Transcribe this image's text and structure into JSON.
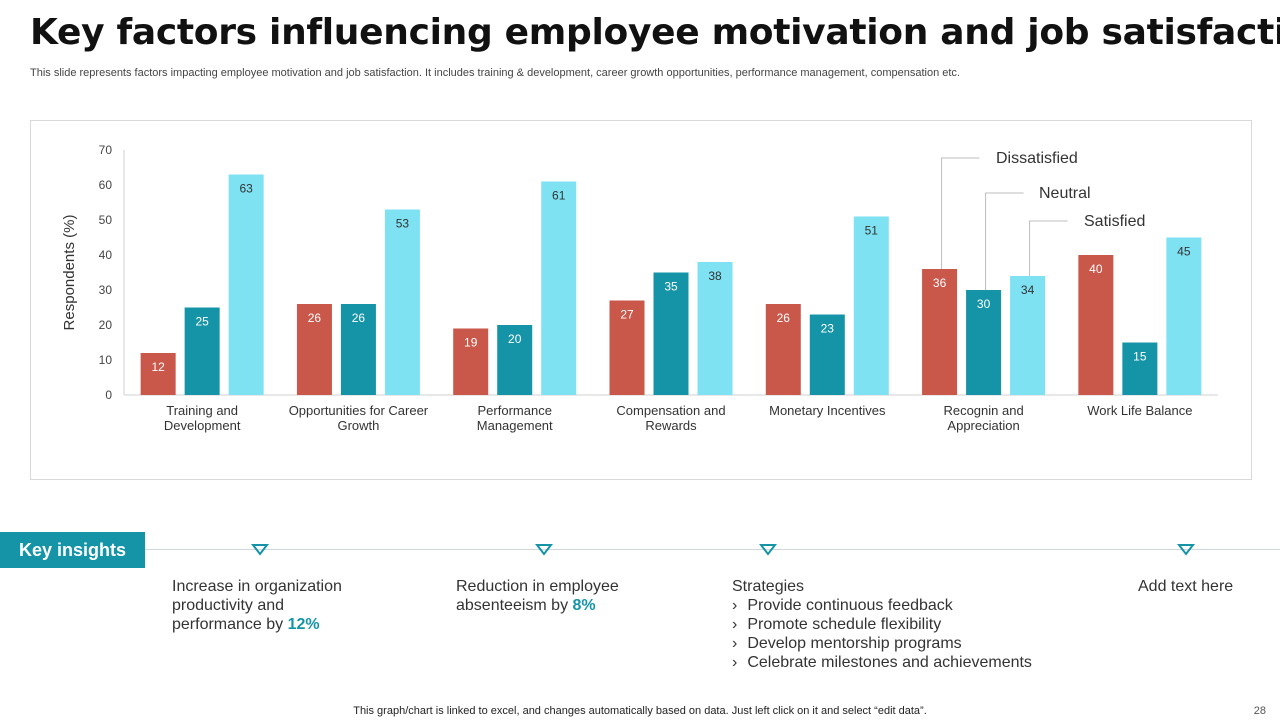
{
  "title": "Key factors influencing employee motivation and job satisfaction",
  "subtitle": "This slide represents factors impacting employee motivation and job satisfaction. It includes training & development, career growth opportunities, performance management, compensation etc.",
  "colors": {
    "dissatisfied": "#c9574a",
    "neutral": "#1594a8",
    "satisfied": "#7ee2f3",
    "accent": "#1594a8"
  },
  "chart_data": {
    "type": "bar",
    "title": "",
    "xlabel": "",
    "ylabel": "Respondents (%)",
    "ylim": [
      0,
      70
    ],
    "yticks": [
      0,
      10,
      20,
      30,
      40,
      50,
      60,
      70
    ],
    "grid": false,
    "categories": [
      [
        "Training and",
        "Development"
      ],
      [
        "Opportunities for Career",
        "Growth"
      ],
      [
        "Performance",
        "Management"
      ],
      [
        "Compensation and",
        "Rewards"
      ],
      [
        "Monetary Incentives"
      ],
      [
        "Recognin and",
        "Appreciation"
      ],
      [
        "Work Life Balance"
      ]
    ],
    "series": [
      {
        "name": "Dissatisfied",
        "values": [
          12,
          26,
          19,
          27,
          26,
          36,
          40
        ]
      },
      {
        "name": "Neutral",
        "values": [
          25,
          26,
          20,
          35,
          23,
          30,
          15
        ]
      },
      {
        "name": "Satisfied",
        "values": [
          63,
          53,
          61,
          38,
          51,
          34,
          45
        ]
      }
    ],
    "legend": [
      "Dissatisfied",
      "Neutral",
      "Satisfied"
    ]
  },
  "insights": {
    "badge": "Key insights",
    "item1": {
      "pre": "Increase  in organization productivity and performance by ",
      "value": "12%"
    },
    "item2": {
      "pre": "Reduction in employee absenteeism by ",
      "value": "8%"
    },
    "strategies": {
      "heading": "Strategies",
      "items": [
        "Provide continuous feedback",
        "Promote schedule flexibility",
        "Develop mentorship programs",
        "Celebrate milestones and achievements"
      ]
    },
    "item4": "Add text here"
  },
  "footer": {
    "note": "This graph/chart is linked to excel,  and changes automatically based on data. Just left click on it and select “edit data”.",
    "page": "28"
  }
}
